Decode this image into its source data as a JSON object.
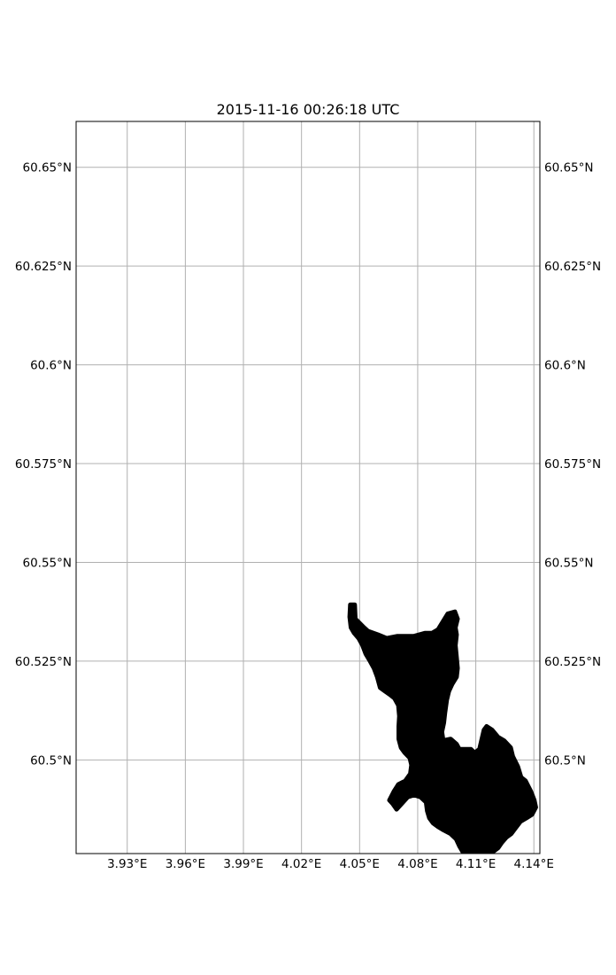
{
  "title": "2015-11-16 00:26:18 UTC",
  "colors": {
    "land": "#000000",
    "grid": "#b0b0b0",
    "frame": "#000000",
    "background": "#ffffff"
  },
  "map": {
    "lon_range": [
      3.9036,
      4.1431
    ],
    "lat_range": [
      60.4763,
      60.6616
    ],
    "grid": true,
    "lon_ticks": [
      {
        "value": 3.93,
        "label": "3.93°E"
      },
      {
        "value": 3.96,
        "label": "3.96°E"
      },
      {
        "value": 3.99,
        "label": "3.99°E"
      },
      {
        "value": 4.02,
        "label": "4.02°E"
      },
      {
        "value": 4.05,
        "label": "4.05°E"
      },
      {
        "value": 4.08,
        "label": "4.08°E"
      },
      {
        "value": 4.11,
        "label": "4.11°E"
      },
      {
        "value": 4.14,
        "label": "4.14°E"
      }
    ],
    "lat_ticks": [
      {
        "value": 60.65,
        "label": "60.65°N"
      },
      {
        "value": 60.625,
        "label": "60.625°N"
      },
      {
        "value": 60.6,
        "label": "60.6°N"
      },
      {
        "value": 60.575,
        "label": "60.575°N"
      },
      {
        "value": 60.55,
        "label": "60.55°N"
      },
      {
        "value": 60.525,
        "label": "60.525°N"
      },
      {
        "value": 60.5,
        "label": "60.5°N"
      }
    ],
    "land_polygon": [
      [
        4.0452,
        60.5393
      ],
      [
        4.0475,
        60.5393
      ],
      [
        4.0478,
        60.5357
      ],
      [
        4.0523,
        60.5335
      ],
      [
        4.0543,
        60.5326
      ],
      [
        4.0594,
        60.5317
      ],
      [
        4.064,
        60.5308
      ],
      [
        4.0693,
        60.5313
      ],
      [
        4.0779,
        60.5313
      ],
      [
        4.0837,
        60.5321
      ],
      [
        4.0874,
        60.5321
      ],
      [
        4.0905,
        60.533
      ],
      [
        4.0955,
        60.537
      ],
      [
        4.0992,
        60.5375
      ],
      [
        4.1006,
        60.5357
      ],
      [
        4.0995,
        60.5335
      ],
      [
        4.1001,
        60.5317
      ],
      [
        4.0995,
        60.529
      ],
      [
        4.1001,
        60.5259
      ],
      [
        4.1006,
        60.5232
      ],
      [
        4.1001,
        60.521
      ],
      [
        4.0978,
        60.5192
      ],
      [
        4.0961,
        60.5174
      ],
      [
        4.095,
        60.5152
      ],
      [
        4.0941,
        60.512
      ],
      [
        4.0935,
        60.5094
      ],
      [
        4.0925,
        60.5071
      ],
      [
        4.0932,
        60.5049
      ],
      [
        4.097,
        60.5053
      ],
      [
        4.1001,
        60.504
      ],
      [
        4.1015,
        60.5027
      ],
      [
        4.1046,
        60.5027
      ],
      [
        4.1075,
        60.5027
      ],
      [
        4.1094,
        60.5018
      ],
      [
        4.1119,
        60.5027
      ],
      [
        4.1142,
        60.5076
      ],
      [
        4.1156,
        60.5085
      ],
      [
        4.1184,
        60.5076
      ],
      [
        4.1215,
        60.5058
      ],
      [
        4.1246,
        60.5049
      ],
      [
        4.128,
        60.5031
      ],
      [
        4.1291,
        60.5009
      ],
      [
        4.1317,
        60.4983
      ],
      [
        4.1334,
        60.4956
      ],
      [
        4.1357,
        60.4947
      ],
      [
        4.1385,
        60.492
      ],
      [
        4.1402,
        60.4898
      ],
      [
        4.141,
        60.488
      ],
      [
        4.1391,
        60.4862
      ],
      [
        4.1362,
        60.4853
      ],
      [
        4.1331,
        60.4844
      ],
      [
        4.1303,
        60.4826
      ],
      [
        4.1283,
        60.4813
      ],
      [
        4.1258,
        60.4804
      ],
      [
        4.1235,
        60.4791
      ],
      [
        4.1215,
        60.4777
      ],
      [
        4.119,
        60.4768
      ],
      [
        4.1167,
        60.4765
      ],
      [
        4.1128,
        60.4764
      ],
      [
        4.108,
        60.4764
      ],
      [
        4.1052,
        60.4764
      ],
      [
        4.1032,
        60.4768
      ],
      [
        4.1015,
        60.4782
      ],
      [
        4.0998,
        60.48
      ],
      [
        4.097,
        60.4813
      ],
      [
        4.0935,
        60.4822
      ],
      [
        4.0905,
        60.4831
      ],
      [
        4.088,
        60.484
      ],
      [
        4.086,
        60.4853
      ],
      [
        4.0849,
        60.4871
      ],
      [
        4.0843,
        60.4893
      ],
      [
        4.0815,
        60.4906
      ],
      [
        4.0781,
        60.4911
      ],
      [
        4.0748,
        60.4906
      ],
      [
        4.0717,
        60.4889
      ],
      [
        4.0691,
        60.4875
      ],
      [
        4.0671,
        60.4889
      ],
      [
        4.0654,
        60.4898
      ],
      [
        4.0677,
        60.492
      ],
      [
        4.07,
        60.4938
      ],
      [
        4.0736,
        60.4947
      ],
      [
        4.0762,
        60.4965
      ],
      [
        4.0768,
        60.4987
      ],
      [
        4.0759,
        60.5005
      ],
      [
        4.0733,
        60.5018
      ],
      [
        4.0714,
        60.5031
      ],
      [
        4.0702,
        60.5053
      ],
      [
        4.0702,
        60.5085
      ],
      [
        4.0705,
        60.5111
      ],
      [
        4.07,
        60.5138
      ],
      [
        4.068,
        60.5156
      ],
      [
        4.0657,
        60.5165
      ],
      [
        4.0631,
        60.5174
      ],
      [
        4.0606,
        60.5183
      ],
      [
        4.0591,
        60.521
      ],
      [
        4.0574,
        60.5232
      ],
      [
        4.0554,
        60.525
      ],
      [
        4.0532,
        60.5268
      ],
      [
        4.0515,
        60.529
      ],
      [
        4.0495,
        60.5308
      ],
      [
        4.0472,
        60.5321
      ],
      [
        4.0455,
        60.5335
      ],
      [
        4.0449,
        60.5362
      ]
    ]
  }
}
